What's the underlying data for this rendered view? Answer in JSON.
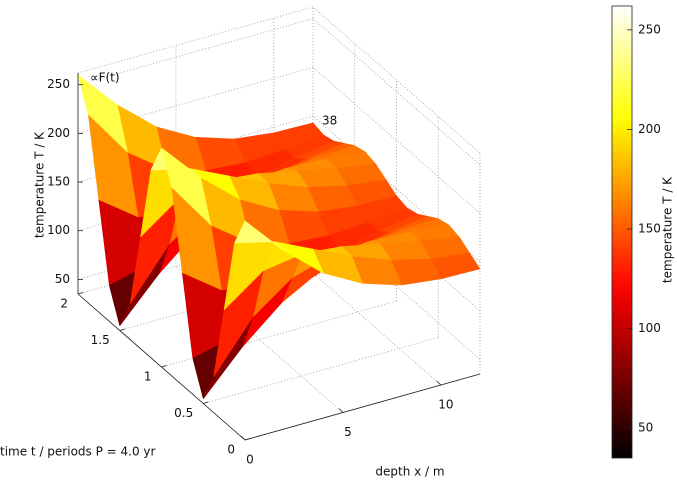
{
  "chart_data": {
    "type": "surface",
    "x_label": "depth x / m",
    "y_label": "time t / periods P = 4.0 yr",
    "z_label": "temperature T / K",
    "annotations": [
      "∝F(t)",
      "38"
    ],
    "x": [
      0,
      2,
      4,
      6,
      8,
      10,
      12
    ],
    "y": [
      0,
      0.125,
      0.25,
      0.375,
      0.5,
      0.625,
      0.75,
      0.875,
      1,
      1.125,
      1.25,
      1.375,
      1.5,
      1.625,
      1.75,
      1.875,
      2
    ],
    "values": [
      [
        260,
        218,
        184,
        162,
        149,
        144,
        143
      ],
      [
        228,
        218,
        199,
        180,
        165,
        155,
        150
      ],
      [
        150,
        179,
        185,
        181,
        172,
        164,
        157
      ],
      [
        72,
        122,
        151,
        163,
        166,
        164,
        160
      ],
      [
        40,
        82,
        116,
        138,
        151,
        156,
        157
      ],
      [
        72,
        82,
        101,
        120,
        135,
        145,
        150
      ],
      [
        150,
        121,
        115,
        119,
        128,
        137,
        143
      ],
      [
        228,
        178,
        149,
        137,
        134,
        136,
        140
      ],
      [
        260,
        218,
        184,
        162,
        149,
        144,
        143
      ],
      [
        228,
        218,
        199,
        180,
        165,
        155,
        150
      ],
      [
        150,
        179,
        185,
        181,
        172,
        164,
        157
      ],
      [
        72,
        122,
        151,
        163,
        166,
        164,
        160
      ],
      [
        40,
        82,
        116,
        138,
        151,
        156,
        157
      ],
      [
        72,
        82,
        101,
        120,
        135,
        145,
        150
      ],
      [
        150,
        121,
        115,
        119,
        128,
        137,
        143
      ],
      [
        228,
        178,
        149,
        137,
        134,
        136,
        140
      ],
      [
        260,
        218,
        184,
        162,
        149,
        144,
        143
      ]
    ],
    "xlim": [
      0,
      12
    ],
    "xticks": [
      0,
      5,
      10
    ],
    "ylim": [
      0,
      2
    ],
    "yticks": [
      0,
      0.5,
      1,
      1.5,
      2
    ],
    "zlim": [
      35,
      262
    ],
    "zticks": [
      50,
      100,
      150,
      200,
      250
    ],
    "colormap": "hot",
    "colorbar": {
      "label": "temperature T / K",
      "lim": [
        35,
        262
      ],
      "ticks": [
        50,
        100,
        150,
        200,
        250
      ]
    },
    "grid": true
  }
}
